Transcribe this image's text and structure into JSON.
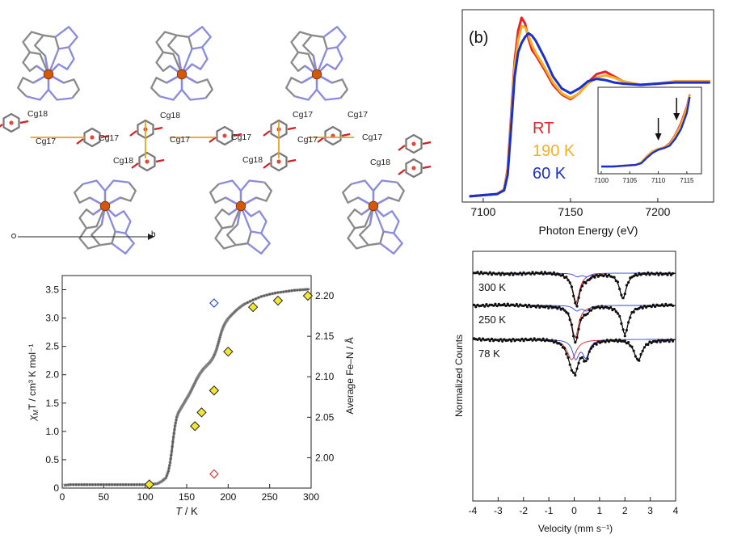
{
  "crystal": {
    "labels": [
      {
        "text": "Cg18"
      },
      {
        "text": "Cg17"
      },
      {
        "text": "Cg17"
      },
      {
        "text": "Cg18"
      },
      {
        "text": "Cg17"
      },
      {
        "text": "Cg17"
      },
      {
        "text": "Cg18"
      },
      {
        "text": "Cg17"
      },
      {
        "text": "Cg17"
      },
      {
        "text": "Cg18"
      },
      {
        "text": "Cg17"
      },
      {
        "text": "Cg17"
      },
      {
        "text": "Cg18"
      }
    ],
    "axis_label": "b",
    "origin_label": "o"
  },
  "colors": {
    "rt": "#e8202a",
    "k190": "#f5b020",
    "k60": "#1a2fd0",
    "marker_yellow": "#f2e630",
    "fit_red": "#e02020",
    "fit_blue": "#3040e0",
    "iron": "#d2580a",
    "carbon": "#8a8a8a",
    "nitrogen": "#8a8ae0",
    "oxygen": "#d02020"
  },
  "chart_data": [
    {
      "id": "xanes",
      "type": "line",
      "panel_label": "(b)",
      "xlabel": "Photon Energy (eV)",
      "ylabel": "",
      "xlim": [
        7088,
        7232
      ],
      "ylim": [
        0,
        1.55
      ],
      "xticks": [
        7100,
        7150,
        7200
      ],
      "legend": [
        {
          "name": "RT",
          "color": "#e8202a"
        },
        {
          "name": "190 K",
          "color": "#f5b020"
        },
        {
          "name": "60 K",
          "color": "#1a2fd0"
        }
      ],
      "series": [
        {
          "name": "RT",
          "color": "#e8202a",
          "x": [
            7092,
            7100,
            7108,
            7112,
            7114,
            7116,
            7118,
            7120,
            7122,
            7124,
            7126,
            7128,
            7130,
            7135,
            7140,
            7145,
            7150,
            7155,
            7160,
            7165,
            7170,
            7175,
            7180,
            7190,
            7200,
            7210,
            7220,
            7230
          ],
          "y": [
            0.02,
            0.03,
            0.04,
            0.08,
            0.25,
            0.7,
            1.15,
            1.4,
            1.51,
            1.46,
            1.33,
            1.24,
            1.2,
            1.08,
            0.95,
            0.87,
            0.83,
            0.88,
            0.97,
            1.04,
            1.06,
            1.02,
            0.98,
            0.95,
            0.96,
            0.98,
            0.98,
            0.98
          ]
        },
        {
          "name": "190 K",
          "color": "#f5b020",
          "x": [
            7092,
            7100,
            7108,
            7112,
            7114,
            7116,
            7118,
            7120,
            7122,
            7124,
            7126,
            7128,
            7130,
            7135,
            7140,
            7145,
            7150,
            7155,
            7160,
            7165,
            7170,
            7175,
            7180,
            7190,
            7200,
            7210,
            7220,
            7230
          ],
          "y": [
            0.02,
            0.03,
            0.04,
            0.08,
            0.23,
            0.66,
            1.1,
            1.32,
            1.44,
            1.43,
            1.36,
            1.28,
            1.22,
            1.1,
            0.97,
            0.88,
            0.84,
            0.88,
            0.96,
            1.01,
            1.03,
            1.01,
            0.98,
            0.95,
            0.96,
            0.98,
            0.98,
            0.98
          ]
        },
        {
          "name": "60 K",
          "color": "#1a2fd0",
          "x": [
            7092,
            7100,
            7108,
            7112,
            7114,
            7116,
            7118,
            7120,
            7122,
            7124,
            7126,
            7128,
            7130,
            7135,
            7140,
            7145,
            7150,
            7155,
            7160,
            7165,
            7170,
            7175,
            7180,
            7190,
            7200,
            7210,
            7220,
            7230
          ],
          "y": [
            0.02,
            0.03,
            0.04,
            0.07,
            0.2,
            0.6,
            1.02,
            1.22,
            1.3,
            1.35,
            1.38,
            1.36,
            1.32,
            1.18,
            1.02,
            0.92,
            0.88,
            0.92,
            0.98,
            1.0,
            0.99,
            0.97,
            0.96,
            0.95,
            0.96,
            0.97,
            0.97,
            0.97
          ]
        }
      ],
      "inset": {
        "xlim": [
          7100,
          7117
        ],
        "ylim": [
          0,
          1
        ],
        "xticks": [
          7100,
          7105,
          7110,
          7115
        ],
        "arrows_at_x": [
          7110,
          7113.2
        ],
        "series": [
          {
            "name": "RT",
            "color": "#e8202a",
            "x": [
              7100,
              7102,
              7104,
              7106,
              7107,
              7108,
              7109,
              7110,
              7111,
              7112,
              7113,
              7114,
              7115,
              7115.5
            ],
            "y": [
              0.05,
              0.05,
              0.06,
              0.07,
              0.1,
              0.18,
              0.24,
              0.27,
              0.29,
              0.34,
              0.45,
              0.6,
              0.8,
              0.95
            ]
          },
          {
            "name": "190 K",
            "color": "#f5b020",
            "x": [
              7100,
              7102,
              7104,
              7106,
              7107,
              7108,
              7109,
              7110,
              7111,
              7112,
              7113,
              7114,
              7115,
              7115.5
            ],
            "y": [
              0.05,
              0.05,
              0.06,
              0.07,
              0.1,
              0.18,
              0.24,
              0.27,
              0.29,
              0.33,
              0.44,
              0.58,
              0.78,
              0.94
            ]
          },
          {
            "name": "60 K",
            "color": "#1a2fd0",
            "x": [
              7100,
              7102,
              7104,
              7106,
              7107,
              7108,
              7109,
              7110,
              7111,
              7112,
              7113,
              7114,
              7115,
              7115.5
            ],
            "y": [
              0.05,
              0.05,
              0.06,
              0.07,
              0.09,
              0.16,
              0.22,
              0.26,
              0.28,
              0.31,
              0.4,
              0.52,
              0.72,
              0.92
            ]
          }
        ]
      }
    },
    {
      "id": "magnetic",
      "type": "scatter",
      "xlabel_italic": "T",
      "xlabel_rest": " / K",
      "ylabel_symbol": "χ",
      "ylabel_sub": "M",
      "ylabel_rest": "T / cm³ K mol⁻¹",
      "y2label": "Average Fe–N / Å",
      "xlim": [
        0,
        300
      ],
      "ylim": [
        0,
        3.75
      ],
      "y2lim": [
        1.9625,
        2.225
      ],
      "xticks": [
        0,
        50,
        100,
        150,
        200,
        250,
        300
      ],
      "yticks": [
        "0",
        "0.5",
        "1.0",
        "1.5",
        "2.0",
        "2.5",
        "3.0",
        "3.5"
      ],
      "y2ticks": [
        "2.00",
        "2.05",
        "2.10",
        "2.15",
        "2.20"
      ],
      "chiT": {
        "x": [
          2,
          10,
          20,
          30,
          40,
          50,
          60,
          70,
          80,
          90,
          100,
          110,
          115,
          120,
          125,
          128,
          130,
          132,
          134,
          136,
          138,
          140,
          142,
          144,
          146,
          148,
          150,
          152,
          154,
          156,
          158,
          160,
          162,
          164,
          166,
          168,
          170,
          172,
          174,
          176,
          178,
          180,
          182,
          184,
          186,
          188,
          190,
          192,
          194,
          196,
          198,
          200,
          205,
          210,
          215,
          220,
          230,
          240,
          250,
          260,
          270,
          280,
          290,
          298
        ],
        "y": [
          0.05,
          0.06,
          0.06,
          0.06,
          0.06,
          0.06,
          0.06,
          0.06,
          0.06,
          0.06,
          0.06,
          0.07,
          0.08,
          0.12,
          0.18,
          0.3,
          0.45,
          0.65,
          0.9,
          1.1,
          1.25,
          1.33,
          1.38,
          1.43,
          1.48,
          1.53,
          1.58,
          1.63,
          1.68,
          1.74,
          1.8,
          1.86,
          1.92,
          1.97,
          2.02,
          2.06,
          2.1,
          2.13,
          2.16,
          2.19,
          2.22,
          2.26,
          2.31,
          2.37,
          2.45,
          2.55,
          2.66,
          2.76,
          2.84,
          2.9,
          2.95,
          2.99,
          3.07,
          3.14,
          3.2,
          3.25,
          3.32,
          3.38,
          3.42,
          3.45,
          3.47,
          3.49,
          3.5,
          3.51
        ]
      },
      "fe_n_yellow": {
        "x": [
          105,
          160,
          168,
          183,
          200,
          230,
          260,
          296
        ],
        "y": [
          1.967,
          2.039,
          2.056,
          2.083,
          2.131,
          2.186,
          2.194,
          2.2
        ]
      },
      "fe_n_open": [
        {
          "x": 183,
          "y": 2.191,
          "color": "#3050d0"
        },
        {
          "x": 183,
          "y": 1.98,
          "color": "#e04040"
        }
      ]
    },
    {
      "id": "mossbauer",
      "type": "scatter",
      "xlabel": "Velocity  (mm s⁻¹)",
      "ylabel": "Normalized Counts",
      "xlim": [
        -4,
        4
      ],
      "xticks": [
        -4,
        -3,
        -2,
        -1,
        0,
        1,
        2,
        3,
        4
      ],
      "spectra": [
        {
          "label": "300 K",
          "offset": 0.0,
          "components": [
            {
              "color": "#e02020",
              "lines": [
                {
                  "center": 0.08,
                  "width": 0.32,
                  "depth": 0.34
                },
                {
                  "center": 1.92,
                  "width": 0.32,
                  "depth": 0.3
                }
              ]
            },
            {
              "color": "#3040e0",
              "lines": [
                {
                  "center": 0.12,
                  "width": 0.3,
                  "depth": 0.04
                },
                {
                  "center": 0.5,
                  "width": 0.3,
                  "depth": 0.04
                }
              ]
            }
          ]
        },
        {
          "label": "250 K",
          "offset": 0.38,
          "components": [
            {
              "color": "#e02020",
              "lines": [
                {
                  "center": 0.04,
                  "width": 0.32,
                  "depth": 0.38
                },
                {
                  "center": 2.0,
                  "width": 0.32,
                  "depth": 0.34
                }
              ]
            },
            {
              "color": "#3040e0",
              "lines": [
                {
                  "center": 0.1,
                  "width": 0.3,
                  "depth": 0.06
                },
                {
                  "center": 0.48,
                  "width": 0.3,
                  "depth": 0.06
                }
              ]
            }
          ]
        },
        {
          "label": "78 K",
          "offset": 0.78,
          "components": [
            {
              "color": "#e02020",
              "lines": [
                {
                  "center": -0.1,
                  "width": 0.42,
                  "depth": 0.24
                },
                {
                  "center": 2.52,
                  "width": 0.38,
                  "depth": 0.25
                }
              ]
            },
            {
              "color": "#3040e0",
              "lines": [
                {
                  "center": 0.06,
                  "width": 0.3,
                  "depth": 0.22
                },
                {
                  "center": 0.46,
                  "width": 0.3,
                  "depth": 0.2
                }
              ]
            }
          ]
        }
      ]
    }
  ]
}
